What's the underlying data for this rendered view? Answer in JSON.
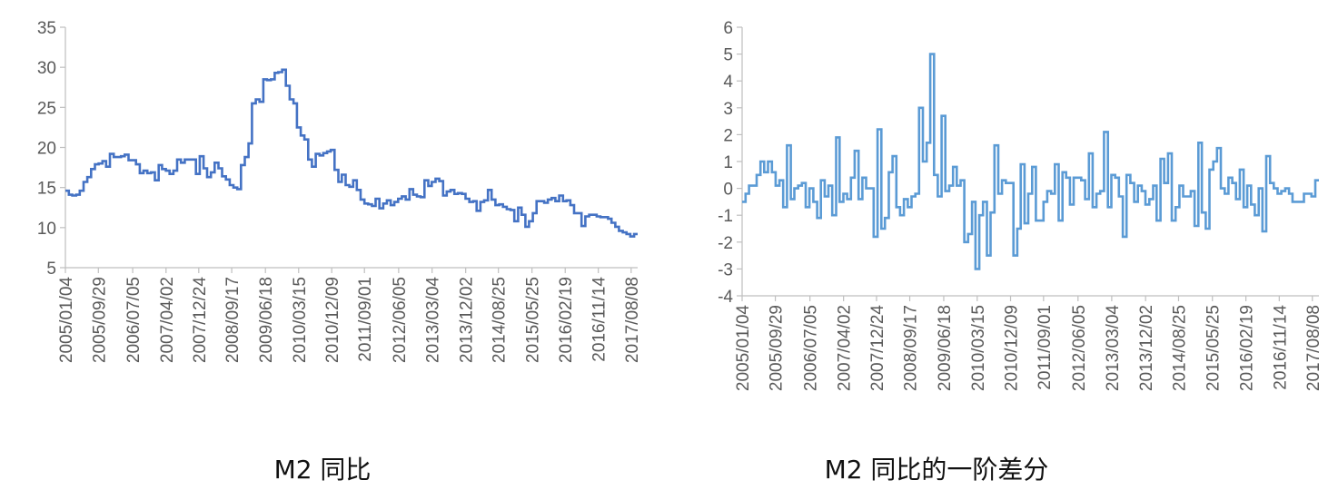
{
  "charts": [
    {
      "caption": "M2 同比"
    },
    {
      "caption": "M2 同比的一阶差分"
    }
  ],
  "chart_data": [
    {
      "type": "line",
      "title": "M2 同比",
      "xlabel": "",
      "ylabel": "",
      "color": "#4472C4",
      "ylim": [
        5,
        35
      ],
      "yticks": [
        5,
        10,
        15,
        20,
        25,
        30,
        35
      ],
      "xlim": [
        "2005/01/04",
        "2017/09/30"
      ],
      "xticks": [
        "2005/01/04",
        "2005/09/29",
        "2006/07/05",
        "2007/04/02",
        "2007/12/24",
        "2008/09/17",
        "2009/06/18",
        "2010/03/15",
        "2010/12/09",
        "2011/09/01",
        "2012/06/05",
        "2013/03/04",
        "2013/12/02",
        "2014/08/25",
        "2015/05/25",
        "2016/02/19",
        "2016/11/14",
        "2017/08/08"
      ],
      "series": [
        {
          "step": true,
          "x": [
            "2005/01/04",
            "2005/02/01",
            "2005/03/01",
            "2005/04/01",
            "2005/05/01",
            "2005/06/01",
            "2005/07/01",
            "2005/08/01",
            "2005/09/01",
            "2005/10/01",
            "2005/11/01",
            "2005/12/01",
            "2006/01/01",
            "2006/02/01",
            "2006/03/01",
            "2006/04/01",
            "2006/05/01",
            "2006/06/01",
            "2006/07/01",
            "2006/08/01",
            "2006/09/01",
            "2006/10/01",
            "2006/11/01",
            "2006/12/01",
            "2007/01/01",
            "2007/02/01",
            "2007/03/01",
            "2007/04/01",
            "2007/05/01",
            "2007/06/01",
            "2007/07/01",
            "2007/08/01",
            "2007/09/01",
            "2007/10/01",
            "2007/11/01",
            "2007/12/01",
            "2008/01/01",
            "2008/02/01",
            "2008/03/01",
            "2008/04/01",
            "2008/05/01",
            "2008/06/01",
            "2008/07/01",
            "2008/08/01",
            "2008/09/01",
            "2008/10/01",
            "2008/11/01",
            "2008/12/01",
            "2009/01/01",
            "2009/02/01",
            "2009/03/01",
            "2009/04/01",
            "2009/05/01",
            "2009/06/01",
            "2009/07/01",
            "2009/08/01",
            "2009/09/01",
            "2009/10/01",
            "2009/11/01",
            "2009/12/01",
            "2010/01/01",
            "2010/02/01",
            "2010/03/01",
            "2010/04/01",
            "2010/05/01",
            "2010/06/01",
            "2010/07/01",
            "2010/08/01",
            "2010/09/01",
            "2010/10/01",
            "2010/11/01",
            "2010/12/01",
            "2011/01/01",
            "2011/02/01",
            "2011/03/01",
            "2011/04/01",
            "2011/05/01",
            "2011/06/01",
            "2011/07/01",
            "2011/08/01",
            "2011/09/01",
            "2011/10/01",
            "2011/11/01",
            "2011/12/01",
            "2012/01/01",
            "2012/02/01",
            "2012/03/01",
            "2012/04/01",
            "2012/05/01",
            "2012/06/01",
            "2012/07/01",
            "2012/08/01",
            "2012/09/01",
            "2012/10/01",
            "2012/11/01",
            "2012/12/01",
            "2013/01/01",
            "2013/02/01",
            "2013/03/01",
            "2013/04/01",
            "2013/05/01",
            "2013/06/01",
            "2013/07/01",
            "2013/08/01",
            "2013/09/01",
            "2013/10/01",
            "2013/11/01",
            "2013/12/01",
            "2014/01/01",
            "2014/02/01",
            "2014/03/01",
            "2014/04/01",
            "2014/05/01",
            "2014/06/01",
            "2014/07/01",
            "2014/08/01",
            "2014/09/01",
            "2014/10/01",
            "2014/11/01",
            "2014/12/01",
            "2015/01/01",
            "2015/02/01",
            "2015/03/01",
            "2015/04/01",
            "2015/05/01",
            "2015/06/01",
            "2015/07/01",
            "2015/08/01",
            "2015/09/01",
            "2015/10/01",
            "2015/11/01",
            "2015/12/01",
            "2016/01/01",
            "2016/02/01",
            "2016/03/01",
            "2016/04/01",
            "2016/05/01",
            "2016/06/01",
            "2016/07/01",
            "2016/08/01",
            "2016/09/01",
            "2016/10/01",
            "2016/11/01",
            "2016/12/01",
            "2017/01/01",
            "2017/02/01",
            "2017/03/01",
            "2017/04/01",
            "2017/05/01",
            "2017/06/01",
            "2017/07/01",
            "2017/08/01",
            "2017/09/01"
          ],
          "y": [
            14.6,
            14.1,
            14.0,
            14.1,
            14.6,
            15.7,
            16.3,
            17.3,
            17.9,
            18.0,
            18.3,
            17.6,
            19.2,
            18.8,
            18.8,
            18.9,
            19.1,
            18.4,
            18.4,
            17.9,
            16.8,
            17.1,
            16.8,
            16.9,
            15.9,
            17.8,
            17.3,
            17.1,
            16.7,
            17.1,
            18.5,
            18.1,
            18.5,
            18.5,
            18.5,
            16.7,
            18.9,
            17.4,
            16.3,
            16.9,
            18.1,
            17.4,
            16.4,
            16.0,
            15.3,
            15.0,
            14.8,
            17.8,
            18.8,
            20.5,
            25.5,
            26.0,
            25.7,
            28.5,
            28.4,
            28.5,
            29.3,
            29.4,
            29.7,
            27.7,
            26.0,
            25.5,
            22.5,
            21.5,
            21.0,
            18.5,
            17.6,
            19.2,
            19.0,
            19.3,
            19.5,
            19.7,
            17.2,
            15.7,
            16.6,
            15.3,
            15.1,
            15.9,
            14.7,
            13.5,
            13.0,
            12.9,
            12.7,
            13.6,
            12.4,
            13.0,
            13.4,
            12.8,
            13.2,
            13.6,
            13.9,
            13.5,
            14.8,
            14.1,
            13.9,
            13.8,
            15.9,
            15.2,
            15.7,
            16.1,
            15.8,
            14.0,
            14.5,
            14.7,
            14.2,
            14.3,
            14.2,
            13.6,
            13.2,
            13.3,
            12.1,
            13.2,
            13.4,
            14.7,
            13.5,
            12.8,
            12.9,
            12.6,
            12.3,
            12.2,
            10.8,
            12.5,
            11.6,
            10.1,
            10.8,
            11.8,
            13.3,
            13.3,
            13.1,
            13.5,
            13.7,
            13.3,
            14.0,
            13.3,
            13.4,
            12.8,
            11.8,
            11.8,
            10.2,
            11.4,
            11.6,
            11.6,
            11.4,
            11.3,
            11.3,
            11.1,
            10.6,
            10.1,
            9.6,
            9.4,
            9.2,
            8.9,
            9.2
          ]
        }
      ]
    },
    {
      "type": "line",
      "title": "M2 同比的一阶差分",
      "xlabel": "",
      "ylabel": "",
      "color": "#5B9BD5",
      "ylim": [
        -4,
        6
      ],
      "yticks": [
        -4,
        -3,
        -2,
        -1,
        0,
        1,
        2,
        3,
        4,
        5,
        6
      ],
      "xlim": [
        "2005/01/04",
        "2017/09/30"
      ],
      "xticks": [
        "2005/01/04",
        "2005/09/29",
        "2006/07/05",
        "2007/04/02",
        "2007/12/24",
        "2008/09/17",
        "2009/06/18",
        "2010/03/15",
        "2010/12/09",
        "2011/09/01",
        "2012/06/05",
        "2013/03/04",
        "2013/12/02",
        "2014/08/25",
        "2015/05/25",
        "2016/02/19",
        "2016/11/14",
        "2017/08/08"
      ],
      "series": [
        {
          "step": true,
          "x": [
            "2005/01/04",
            "2005/02/01",
            "2005/03/01",
            "2005/04/01",
            "2005/05/01",
            "2005/06/01",
            "2005/07/01",
            "2005/08/01",
            "2005/09/01",
            "2005/10/01",
            "2005/11/01",
            "2005/12/01",
            "2006/01/01",
            "2006/02/01",
            "2006/03/01",
            "2006/04/01",
            "2006/05/01",
            "2006/06/01",
            "2006/07/01",
            "2006/08/01",
            "2006/09/01",
            "2006/10/01",
            "2006/11/01",
            "2006/12/01",
            "2007/01/01",
            "2007/02/01",
            "2007/03/01",
            "2007/04/01",
            "2007/05/01",
            "2007/06/01",
            "2007/07/01",
            "2007/08/01",
            "2007/09/01",
            "2007/10/01",
            "2007/11/01",
            "2007/12/01",
            "2008/01/01",
            "2008/02/01",
            "2008/03/01",
            "2008/04/01",
            "2008/05/01",
            "2008/06/01",
            "2008/07/01",
            "2008/08/01",
            "2008/09/01",
            "2008/10/01",
            "2008/11/01",
            "2008/12/01",
            "2009/01/01",
            "2009/02/01",
            "2009/03/01",
            "2009/04/01",
            "2009/05/01",
            "2009/06/01",
            "2009/07/01",
            "2009/08/01",
            "2009/09/01",
            "2009/10/01",
            "2009/11/01",
            "2009/12/01",
            "2010/01/01",
            "2010/02/01",
            "2010/03/01",
            "2010/04/01",
            "2010/05/01",
            "2010/06/01",
            "2010/07/01",
            "2010/08/01",
            "2010/09/01",
            "2010/10/01",
            "2010/11/01",
            "2010/12/01",
            "2011/01/01",
            "2011/02/01",
            "2011/03/01",
            "2011/04/01",
            "2011/05/01",
            "2011/06/01",
            "2011/07/01",
            "2011/08/01",
            "2011/09/01",
            "2011/10/01",
            "2011/11/01",
            "2011/12/01",
            "2012/01/01",
            "2012/02/01",
            "2012/03/01",
            "2012/04/01",
            "2012/05/01",
            "2012/06/01",
            "2012/07/01",
            "2012/08/01",
            "2012/09/01",
            "2012/10/01",
            "2012/11/01",
            "2012/12/01",
            "2013/01/01",
            "2013/02/01",
            "2013/03/01",
            "2013/04/01",
            "2013/05/01",
            "2013/06/01",
            "2013/07/01",
            "2013/08/01",
            "2013/09/01",
            "2013/10/01",
            "2013/11/01",
            "2013/12/01",
            "2014/01/01",
            "2014/02/01",
            "2014/03/01",
            "2014/04/01",
            "2014/05/01",
            "2014/06/01",
            "2014/07/01",
            "2014/08/01",
            "2014/09/01",
            "2014/10/01",
            "2014/11/01",
            "2014/12/01",
            "2015/01/01",
            "2015/02/01",
            "2015/03/01",
            "2015/04/01",
            "2015/05/01",
            "2015/06/01",
            "2015/07/01",
            "2015/08/01",
            "2015/09/01",
            "2015/10/01",
            "2015/11/01",
            "2015/12/01",
            "2016/01/01",
            "2016/02/01",
            "2016/03/01",
            "2016/04/01",
            "2016/05/01",
            "2016/06/01",
            "2016/07/01",
            "2016/08/01",
            "2016/09/01",
            "2016/10/01",
            "2016/11/01",
            "2016/12/01",
            "2017/01/01",
            "2017/02/01",
            "2017/03/01",
            "2017/04/01",
            "2017/05/01",
            "2017/06/01",
            "2017/07/01",
            "2017/08/01",
            "2017/09/01"
          ],
          "y": [
            -0.5,
            -0.2,
            0.1,
            0.1,
            0.5,
            1.0,
            0.6,
            1.0,
            0.6,
            0.1,
            0.3,
            -0.7,
            1.6,
            -0.4,
            0.0,
            0.1,
            0.2,
            -0.7,
            0.0,
            -0.5,
            -1.1,
            0.3,
            -0.3,
            0.1,
            -1.0,
            1.9,
            -0.5,
            -0.2,
            -0.4,
            0.4,
            1.4,
            -0.4,
            0.4,
            0.0,
            0.0,
            -1.8,
            2.2,
            -1.5,
            -1.1,
            0.6,
            1.2,
            -0.7,
            -1.0,
            -0.4,
            -0.7,
            -0.3,
            -0.2,
            3.0,
            1.0,
            1.7,
            5.0,
            0.5,
            -0.3,
            2.7,
            -0.1,
            0.1,
            0.8,
            0.1,
            0.3,
            -2.0,
            -1.7,
            -0.5,
            -3.0,
            -1.0,
            -0.5,
            -2.5,
            -0.9,
            1.6,
            -0.2,
            0.3,
            0.2,
            0.2,
            -2.5,
            -1.5,
            0.9,
            -1.3,
            -0.2,
            0.8,
            -1.2,
            -1.2,
            -0.5,
            -0.1,
            -0.2,
            0.9,
            -1.2,
            0.6,
            0.4,
            -0.6,
            0.4,
            0.4,
            0.3,
            -0.4,
            1.3,
            -0.7,
            -0.2,
            -0.1,
            2.1,
            -0.7,
            0.5,
            0.4,
            -0.3,
            -1.8,
            0.5,
            0.2,
            -0.5,
            0.1,
            -0.1,
            -0.6,
            -0.4,
            0.1,
            -1.2,
            1.1,
            0.2,
            1.3,
            -1.2,
            -0.7,
            0.1,
            -0.3,
            -0.3,
            -0.1,
            -1.4,
            1.7,
            -0.9,
            -1.5,
            0.7,
            1.0,
            1.5,
            0.0,
            -0.2,
            0.4,
            0.2,
            -0.4,
            0.7,
            -0.7,
            0.1,
            -0.6,
            -1.0,
            0.0,
            -1.6,
            1.2,
            0.2,
            0.0,
            -0.2,
            -0.1,
            0.0,
            -0.2,
            -0.5,
            -0.5,
            -0.5,
            -0.2,
            -0.2,
            -0.3,
            0.3
          ]
        }
      ]
    }
  ]
}
